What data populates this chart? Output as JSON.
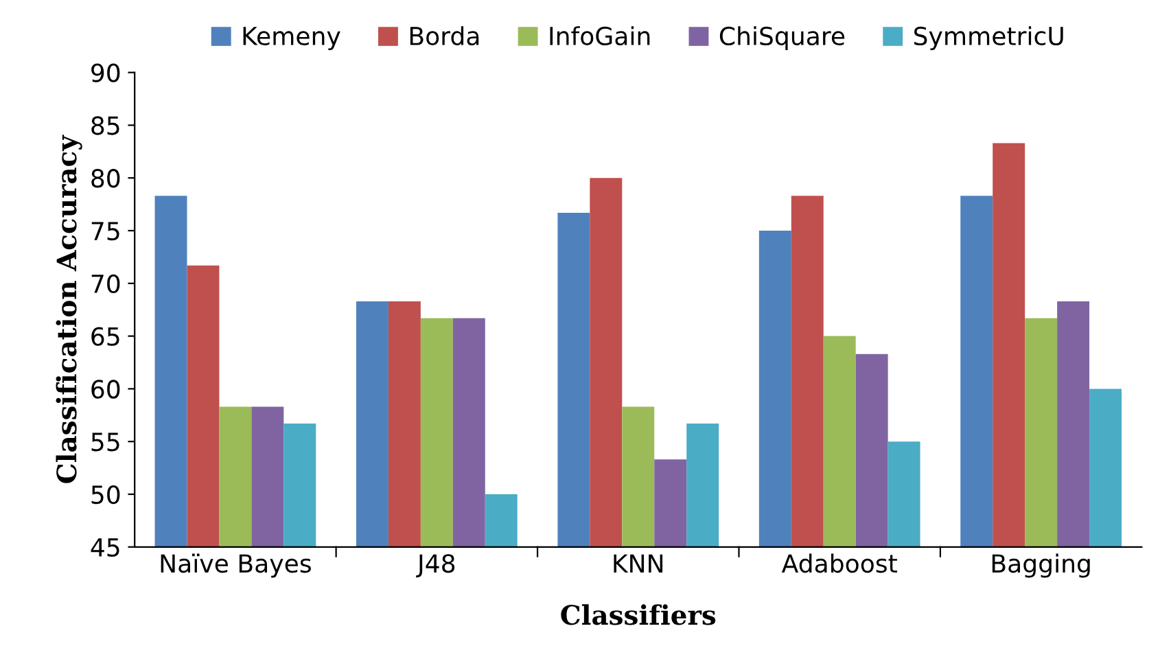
{
  "chart_data": {
    "type": "bar",
    "xlabel": "Classifiers",
    "ylabel": "Classification Accuracy",
    "categories": [
      "Naïve Bayes",
      "J48",
      "KNN",
      "Adaboost",
      "Bagging"
    ],
    "series": [
      {
        "name": "Kemeny",
        "color": "#4f81bd",
        "values": [
          78.3,
          68.3,
          76.7,
          75,
          78.3
        ]
      },
      {
        "name": "Borda",
        "color": "#c0504d",
        "values": [
          71.7,
          68.3,
          80,
          78.3,
          83.3
        ]
      },
      {
        "name": "InfoGain",
        "color": "#9bbb59",
        "values": [
          58.3,
          66.7,
          58.3,
          65,
          66.7
        ]
      },
      {
        "name": "ChiSquare",
        "color": "#8064a2",
        "values": [
          58.3,
          66.7,
          53.3,
          63.3,
          68.3
        ]
      },
      {
        "name": "SymmetricU",
        "color": "#4bacc6",
        "values": [
          56.7,
          50,
          56.7,
          55,
          60
        ]
      }
    ],
    "ylim": [
      45,
      90
    ],
    "yticks": [
      45,
      50,
      55,
      60,
      65,
      70,
      75,
      80,
      85,
      90
    ],
    "grid": false,
    "legend": "top"
  }
}
